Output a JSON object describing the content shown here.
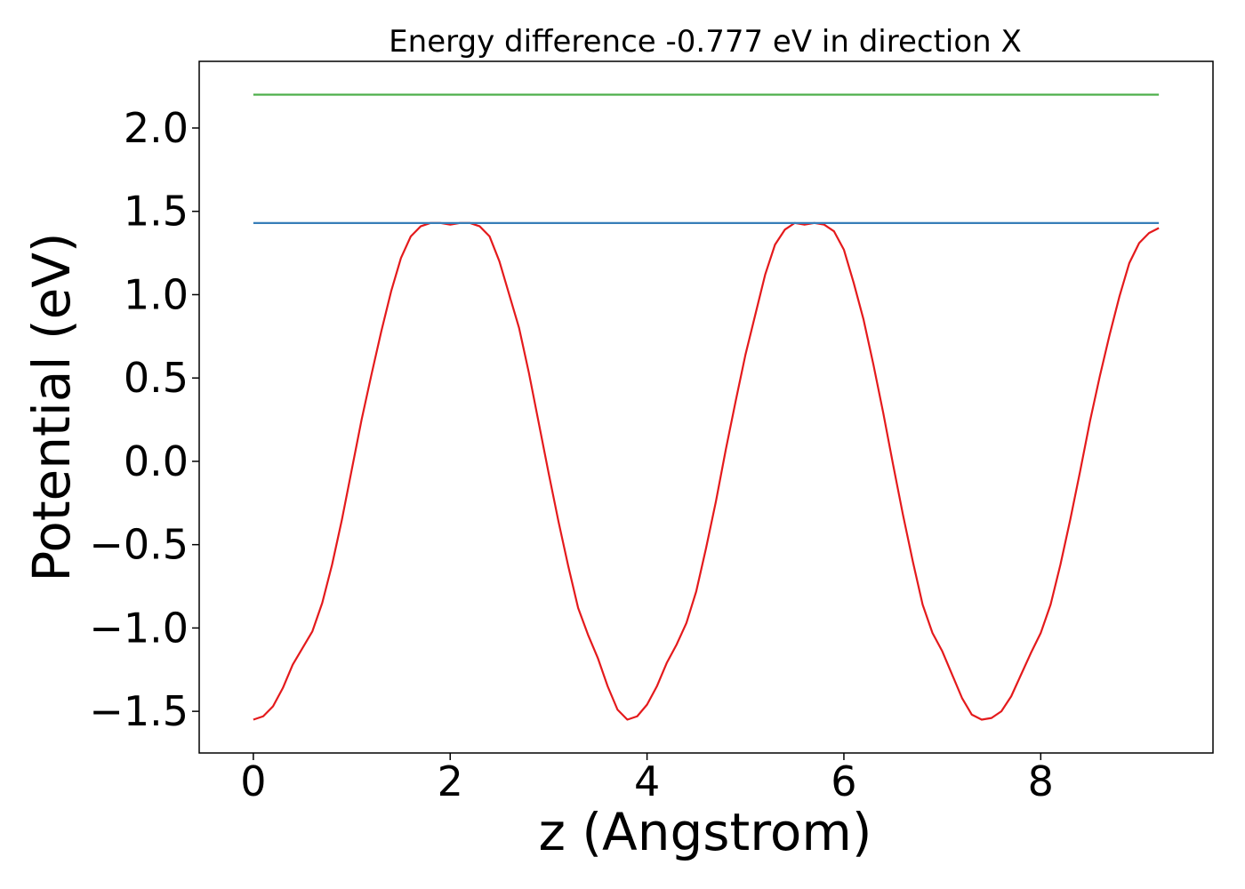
{
  "chart_data": {
    "type": "line",
    "title": "Energy difference -0.777 eV in direction X",
    "xlabel": "z (Angstrom)",
    "ylabel": "Potential (eV)",
    "xlim": [
      -0.55,
      9.75
    ],
    "ylim": [
      -1.75,
      2.4
    ],
    "xticks": [
      0,
      2,
      4,
      6,
      8
    ],
    "xtick_labels": [
      "0",
      "2",
      "4",
      "6",
      "8"
    ],
    "yticks": [
      -1.5,
      -1.0,
      -0.5,
      0.0,
      0.5,
      1.0,
      1.5,
      2.0
    ],
    "ytick_labels": [
      "−1.5",
      "−1.0",
      "−0.5",
      "0.0",
      "0.5",
      "1.0",
      "1.5",
      "2.0"
    ],
    "grid": false,
    "colors": {
      "potential": "#e41a1c",
      "level1": "#377eb8",
      "level2": "#4daf4a"
    },
    "series": [
      {
        "role": "potential",
        "x": [
          0.0,
          0.1,
          0.2,
          0.3,
          0.4,
          0.5,
          0.6,
          0.7,
          0.8,
          0.9,
          1.0,
          1.1,
          1.2,
          1.3,
          1.4,
          1.5,
          1.6,
          1.7,
          1.8,
          1.9,
          2.0,
          2.1,
          2.2,
          2.3,
          2.4,
          2.5,
          2.6,
          2.7,
          2.8,
          2.9,
          3.0,
          3.1,
          3.2,
          3.3,
          3.4,
          3.5,
          3.6,
          3.7,
          3.8,
          3.9,
          4.0,
          4.1,
          4.2,
          4.3,
          4.4,
          4.5,
          4.6,
          4.7,
          4.8,
          4.9,
          5.0,
          5.1,
          5.2,
          5.3,
          5.4,
          5.5,
          5.6,
          5.7,
          5.8,
          5.9,
          6.0,
          6.1,
          6.2,
          6.3,
          6.4,
          6.5,
          6.6,
          6.7,
          6.8,
          6.9,
          7.0,
          7.1,
          7.2,
          7.3,
          7.4,
          7.5,
          7.6,
          7.7,
          7.8,
          7.9,
          8.0,
          8.1,
          8.2,
          8.3,
          8.4,
          8.5,
          8.6,
          8.7,
          8.8,
          8.9,
          9.0,
          9.1,
          9.2
        ],
        "y": [
          -1.55,
          -1.53,
          -1.47,
          -1.36,
          -1.22,
          -1.12,
          -1.02,
          -0.85,
          -0.62,
          -0.35,
          -0.05,
          0.25,
          0.52,
          0.78,
          1.02,
          1.22,
          1.35,
          1.41,
          1.43,
          1.43,
          1.42,
          1.43,
          1.43,
          1.41,
          1.35,
          1.2,
          1.0,
          0.8,
          0.53,
          0.23,
          -0.07,
          -0.36,
          -0.63,
          -0.88,
          -1.04,
          -1.18,
          -1.35,
          -1.49,
          -1.55,
          -1.53,
          -1.46,
          -1.35,
          -1.21,
          -1.1,
          -0.97,
          -0.78,
          -0.52,
          -0.24,
          0.07,
          0.36,
          0.64,
          0.88,
          1.12,
          1.3,
          1.39,
          1.43,
          1.42,
          1.43,
          1.42,
          1.38,
          1.27,
          1.07,
          0.85,
          0.58,
          0.29,
          -0.02,
          -0.32,
          -0.6,
          -0.86,
          -1.03,
          -1.14,
          -1.28,
          -1.42,
          -1.52,
          -1.55,
          -1.54,
          -1.5,
          -1.41,
          -1.28,
          -1.15,
          -1.03,
          -0.86,
          -0.62,
          -0.35,
          -0.06,
          0.24,
          0.51,
          0.76,
          0.99,
          1.19,
          1.31,
          1.37,
          1.4
        ]
      },
      {
        "role": "level1",
        "x": [
          0.0,
          9.2
        ],
        "y": [
          1.43,
          1.43
        ]
      },
      {
        "role": "level2",
        "x": [
          0.0,
          9.2
        ],
        "y": [
          2.2,
          2.2
        ]
      }
    ]
  }
}
